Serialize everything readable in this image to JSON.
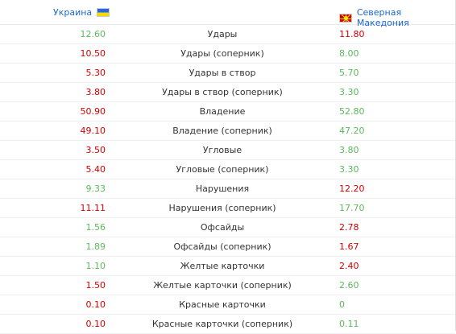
{
  "header": {
    "home_team": "Украина",
    "away_team": "Северная Македония",
    "home_flag_icon": "ukraine-flag-icon",
    "away_flag_icon": "north-macedonia-flag-icon"
  },
  "colors": {
    "win": "#5cb85c",
    "lose": "#d20000",
    "team_link": "#1a66d6"
  },
  "rows": [
    {
      "label": "Удары",
      "home": "12.60",
      "away": "11.80",
      "home_color": "win",
      "away_color": "lose"
    },
    {
      "label": "Удары (соперник)",
      "home": "10.50",
      "away": "8.00",
      "home_color": "lose",
      "away_color": "win"
    },
    {
      "label": "Удары в створ",
      "home": "5.30",
      "away": "5.70",
      "home_color": "lose",
      "away_color": "win"
    },
    {
      "label": "Удары в створ (соперник)",
      "home": "3.80",
      "away": "3.30",
      "home_color": "lose",
      "away_color": "win"
    },
    {
      "label": "Владение",
      "home": "50.90",
      "away": "52.80",
      "home_color": "lose",
      "away_color": "win"
    },
    {
      "label": "Владение (соперник)",
      "home": "49.10",
      "away": "47.20",
      "home_color": "lose",
      "away_color": "win"
    },
    {
      "label": "Угловые",
      "home": "3.50",
      "away": "3.80",
      "home_color": "lose",
      "away_color": "win"
    },
    {
      "label": "Угловые (соперник)",
      "home": "5.40",
      "away": "3.30",
      "home_color": "lose",
      "away_color": "win"
    },
    {
      "label": "Нарушения",
      "home": "9.33",
      "away": "12.20",
      "home_color": "win",
      "away_color": "lose"
    },
    {
      "label": "Нарушения (соперник)",
      "home": "11.11",
      "away": "17.70",
      "home_color": "lose",
      "away_color": "win"
    },
    {
      "label": "Офсайды",
      "home": "1.56",
      "away": "2.78",
      "home_color": "win",
      "away_color": "lose"
    },
    {
      "label": "Офсайды (соперник)",
      "home": "1.89",
      "away": "1.67",
      "home_color": "win",
      "away_color": "lose"
    },
    {
      "label": "Желтые карточки",
      "home": "1.10",
      "away": "2.40",
      "home_color": "win",
      "away_color": "lose"
    },
    {
      "label": "Желтые карточки (соперник)",
      "home": "1.50",
      "away": "2.60",
      "home_color": "lose",
      "away_color": "win"
    },
    {
      "label": "Красные карточки",
      "home": "0.10",
      "away": "0",
      "home_color": "lose",
      "away_color": "win"
    },
    {
      "label": "Красные карточки (соперник)",
      "home": "0.10",
      "away": "0.11",
      "home_color": "lose",
      "away_color": "win"
    }
  ]
}
